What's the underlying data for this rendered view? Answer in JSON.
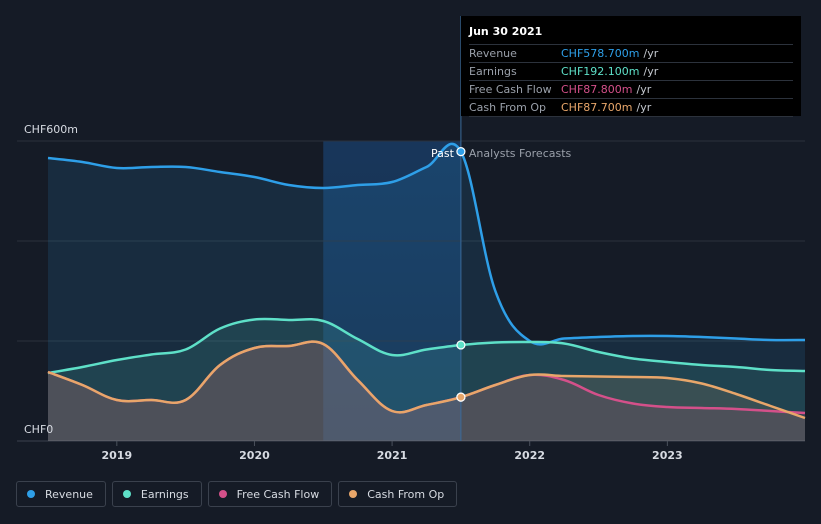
{
  "tooltip": {
    "date": "Jun 30 2021",
    "rows": [
      {
        "label": "Revenue",
        "value": "CHF578.700m",
        "unit": "/yr",
        "color": "#2e9fe8"
      },
      {
        "label": "Earnings",
        "value": "CHF192.100m",
        "unit": "/yr",
        "color": "#5ee0c8"
      },
      {
        "label": "Free Cash Flow",
        "value": "CHF87.800m",
        "unit": "/yr",
        "color": "#d4508a"
      },
      {
        "label": "Cash From Op",
        "value": "CHF87.700m",
        "unit": "/yr",
        "color": "#e8a66a"
      }
    ]
  },
  "legend": [
    {
      "label": "Revenue",
      "color": "#2e9fe8"
    },
    {
      "label": "Earnings",
      "color": "#5ee0c8"
    },
    {
      "label": "Free Cash Flow",
      "color": "#d4508a"
    },
    {
      "label": "Cash From Op",
      "color": "#e8a66a"
    }
  ],
  "chart_data": {
    "type": "line",
    "ylabel_top": "CHF600m",
    "ylabel_bottom": "CHF0",
    "ylim": [
      0,
      600
    ],
    "xlim": [
      2018.5,
      2024.0
    ],
    "x_ticks": [
      2019,
      2020,
      2021,
      2022,
      2023
    ],
    "x_tick_labels": [
      "2019",
      "2020",
      "2021",
      "2022",
      "2023"
    ],
    "past_label": "Past",
    "forecast_label": "Analysts Forecasts",
    "divider_x": 2021.5,
    "highlight_start_x": 2020.5,
    "series": [
      {
        "name": "Revenue",
        "color": "#2e9fe8",
        "points": [
          [
            2018.5,
            566
          ],
          [
            2018.75,
            558
          ],
          [
            2019.0,
            546
          ],
          [
            2019.25,
            548
          ],
          [
            2019.5,
            548
          ],
          [
            2019.75,
            538
          ],
          [
            2020.0,
            528
          ],
          [
            2020.25,
            512
          ],
          [
            2020.5,
            506
          ],
          [
            2020.75,
            512
          ],
          [
            2021.0,
            518
          ],
          [
            2021.25,
            548
          ],
          [
            2021.5,
            578.7
          ],
          [
            2021.75,
            300
          ],
          [
            2022.0,
            200
          ],
          [
            2022.25,
            205
          ],
          [
            2022.5,
            208
          ],
          [
            2022.75,
            210
          ],
          [
            2023.0,
            210
          ],
          [
            2023.25,
            208
          ],
          [
            2023.5,
            205
          ],
          [
            2023.75,
            202
          ],
          [
            2024.0,
            202
          ]
        ]
      },
      {
        "name": "Earnings",
        "color": "#5ee0c8",
        "points": [
          [
            2018.5,
            136
          ],
          [
            2018.75,
            148
          ],
          [
            2019.0,
            162
          ],
          [
            2019.25,
            173
          ],
          [
            2019.5,
            183
          ],
          [
            2019.75,
            225
          ],
          [
            2020.0,
            243
          ],
          [
            2020.25,
            242
          ],
          [
            2020.5,
            240
          ],
          [
            2020.75,
            204
          ],
          [
            2021.0,
            172
          ],
          [
            2021.25,
            183
          ],
          [
            2021.5,
            192.1
          ],
          [
            2021.75,
            197
          ],
          [
            2022.0,
            198
          ],
          [
            2022.25,
            195
          ],
          [
            2022.5,
            178
          ],
          [
            2022.75,
            165
          ],
          [
            2023.0,
            158
          ],
          [
            2023.25,
            152
          ],
          [
            2023.5,
            148
          ],
          [
            2023.75,
            142
          ],
          [
            2024.0,
            140
          ]
        ]
      },
      {
        "name": "Free Cash Flow",
        "color": "#d4508a",
        "points": [
          [
            2018.5,
            138
          ],
          [
            2018.75,
            112
          ],
          [
            2019.0,
            82
          ],
          [
            2019.25,
            82
          ],
          [
            2019.5,
            82
          ],
          [
            2019.75,
            152
          ],
          [
            2020.0,
            186
          ],
          [
            2020.25,
            190
          ],
          [
            2020.5,
            194
          ],
          [
            2020.75,
            122
          ],
          [
            2021.0,
            60
          ],
          [
            2021.25,
            72
          ],
          [
            2021.5,
            87.8
          ],
          [
            2021.75,
            112
          ],
          [
            2022.0,
            132
          ],
          [
            2022.25,
            122
          ],
          [
            2022.5,
            92
          ],
          [
            2022.75,
            75
          ],
          [
            2023.0,
            68
          ],
          [
            2023.25,
            66
          ],
          [
            2023.5,
            64
          ],
          [
            2023.75,
            60
          ],
          [
            2024.0,
            56
          ]
        ]
      },
      {
        "name": "Cash From Op",
        "color": "#e8a66a",
        "points": [
          [
            2018.5,
            138
          ],
          [
            2018.75,
            112
          ],
          [
            2019.0,
            82
          ],
          [
            2019.25,
            82
          ],
          [
            2019.5,
            82
          ],
          [
            2019.75,
            152
          ],
          [
            2020.0,
            186
          ],
          [
            2020.25,
            190
          ],
          [
            2020.5,
            194
          ],
          [
            2020.75,
            122
          ],
          [
            2021.0,
            60
          ],
          [
            2021.25,
            72
          ],
          [
            2021.5,
            87.7
          ],
          [
            2021.75,
            112
          ],
          [
            2022.0,
            132
          ],
          [
            2022.25,
            130
          ],
          [
            2022.5,
            129
          ],
          [
            2022.75,
            128
          ],
          [
            2023.0,
            126
          ],
          [
            2023.25,
            115
          ],
          [
            2023.5,
            94
          ],
          [
            2023.75,
            70
          ],
          [
            2024.0,
            46
          ]
        ]
      }
    ]
  }
}
